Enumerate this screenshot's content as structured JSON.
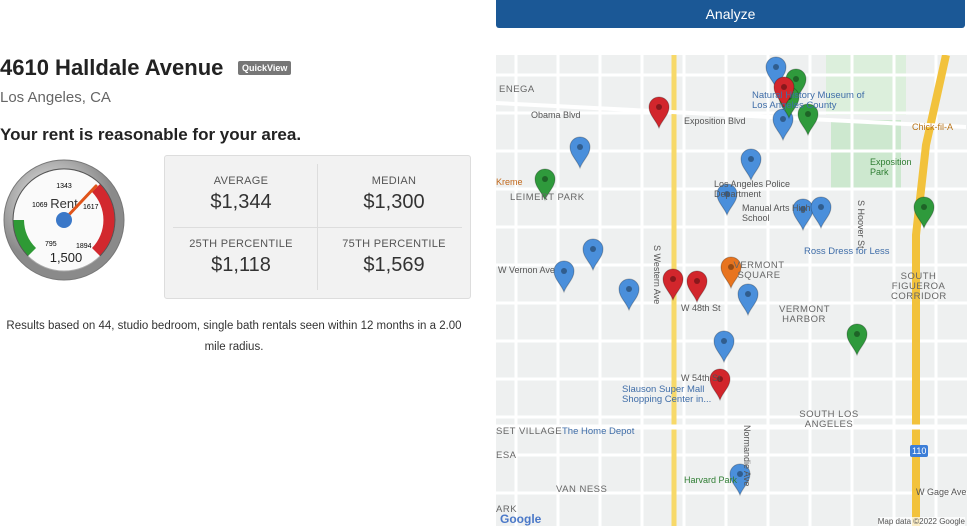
{
  "analyze_button": "Analyze",
  "property": {
    "address": "4610 Halldale Avenue",
    "badge": "QuickView",
    "city": "Los Angeles, CA"
  },
  "verdict": "Your rent is reasonable for your area.",
  "gauge": {
    "ticks": [
      "795",
      "1069",
      "1343",
      "1617",
      "1894"
    ],
    "label": "Rent",
    "value": "1,500"
  },
  "stats": [
    {
      "label": "AVERAGE",
      "value": "$1,344"
    },
    {
      "label": "MEDIAN",
      "value": "$1,300"
    },
    {
      "label": "25TH PERCENTILE",
      "value": "$1,118"
    },
    {
      "label": "75TH PERCENTILE",
      "value": "$1,569"
    }
  ],
  "results_note": "Results based on 44, studio bedroom, single bath rentals seen within 12 months in a 2.00 mile radius.",
  "map": {
    "labels": [
      "ENEGA",
      "Natural History Museum of Los Angeles County",
      "Obama Blvd",
      "Exposition Blvd",
      "Chick-fil-A",
      "Exposition Park",
      "Kreme",
      "Los Angeles Police Department",
      "LEIMERT PARK",
      "Manual Arts High School",
      "Ross Dress for Less",
      "W Vernon Ave",
      "VERMONT SQUARE",
      "SOUTH FIGUEROA CORRIDOR",
      "W 48th St",
      "VERMONT HARBOR",
      "W 54th St",
      "Slauson Super Mall Shopping Center in...",
      "SOUTH LOS ANGELES",
      "SET VILLAGE",
      "The Home Depot",
      "ESA",
      "Harvard Park",
      "W Gage Ave",
      "VAN NESS",
      "ARK",
      "S Western Ave",
      "Normandie Ave",
      "S Hoover St",
      "110"
    ],
    "logo": "Google",
    "attribution": "Map data ©2022 Google"
  }
}
